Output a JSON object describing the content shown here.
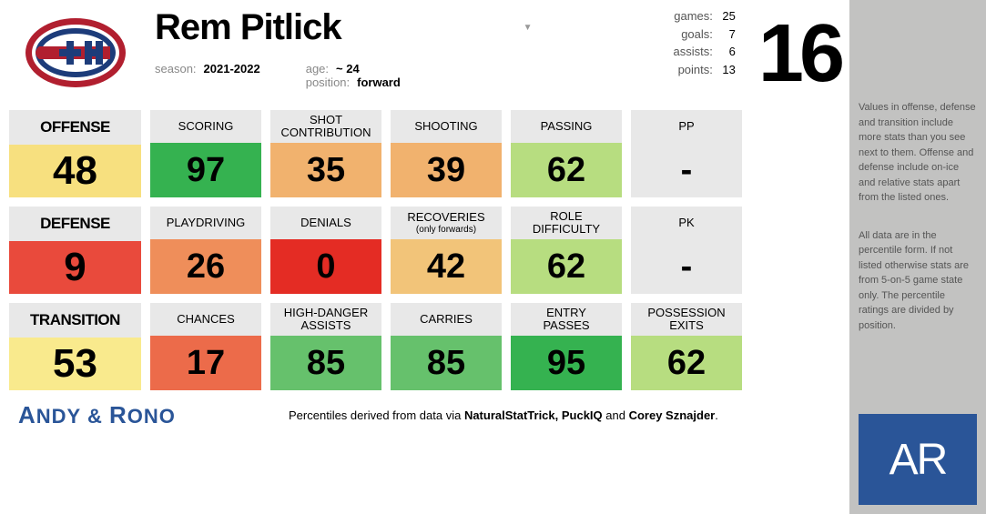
{
  "player": {
    "name": "Rem Pitlick",
    "season_label": "season:",
    "season": "2021-2022",
    "age_label": "age:",
    "age": "~ 24",
    "position_label": "position:",
    "position": "forward",
    "jersey": "16",
    "games_label": "games:",
    "games": "25",
    "goals_label": "goals:",
    "goals": "7",
    "assists_label": "assists:",
    "assists": "6",
    "points_label": "points:",
    "points": "13"
  },
  "team": {
    "logo_bg": "#ffffff",
    "primary": "#b11f2f",
    "secondary": "#1d3c7a",
    "white": "#ffffff"
  },
  "categories": [
    {
      "label": "OFFENSE",
      "value": "48",
      "color": "#f7e07f",
      "stats": [
        {
          "label": "SCORING",
          "sublabel": "",
          "value": "97",
          "color": "#35b250"
        },
        {
          "label": "SHOT",
          "sublabel": "CONTRIBUTION",
          "value": "35",
          "color": "#f1b26e"
        },
        {
          "label": "SHOOTING",
          "sublabel": "",
          "value": "39",
          "color": "#f1b26e"
        },
        {
          "label": "PASSING",
          "sublabel": "",
          "value": "62",
          "color": "#b7dd80"
        },
        {
          "label": "PP",
          "sublabel": "",
          "value": "-",
          "color": "#e8e8e8"
        }
      ]
    },
    {
      "label": "DEFENSE",
      "value": "9",
      "color": "#e94a3c",
      "stats": [
        {
          "label": "PLAYDRIVING",
          "sublabel": "",
          "value": "26",
          "color": "#ef8e5a"
        },
        {
          "label": "DENIALS",
          "sublabel": "",
          "value": "0",
          "color": "#e42c24"
        },
        {
          "label": "RECOVERIES",
          "sublabel": "(only forwards)",
          "value": "42",
          "color": "#f2c479"
        },
        {
          "label": "ROLE",
          "sublabel": "DIFFICULTY",
          "value": "62",
          "color": "#b7dd80"
        },
        {
          "label": "PK",
          "sublabel": "",
          "value": "-",
          "color": "#e8e8e8"
        }
      ]
    },
    {
      "label": "TRANSITION",
      "value": "53",
      "color": "#f9ea8d",
      "stats": [
        {
          "label": "CHANCES",
          "sublabel": "",
          "value": "17",
          "color": "#ec6b4a"
        },
        {
          "label": "HIGH-DANGER",
          "sublabel": "ASSISTS",
          "value": "85",
          "color": "#66c16c"
        },
        {
          "label": "CARRIES",
          "sublabel": "",
          "value": "85",
          "color": "#66c16c"
        },
        {
          "label": "ENTRY",
          "sublabel": "PASSES",
          "value": "95",
          "color": "#35b250"
        },
        {
          "label": "POSSESSION",
          "sublabel": "EXITS",
          "value": "62",
          "color": "#b7dd80"
        }
      ]
    }
  ],
  "footer": {
    "credit_a": "A",
    "credit_andy": "NDY",
    "credit_amp": " & ",
    "credit_r": "R",
    "credit_rono": "ONO",
    "attribution_pre": "Percentiles derived from data via ",
    "attribution_src1": "NaturalStatTrick, PuckIQ",
    "attribution_mid": " and ",
    "attribution_src2": "Corey Sznajder",
    "attribution_post": "."
  },
  "sidebar": {
    "note1": "Values in offense, defense and transition include more stats than you see next to them. Offense and defense include on-ice and relative stats apart from the listed ones.",
    "note2": "All data are in the percentile form. If not listed otherwise stats are from 5-on-5 game state only. The percentile ratings are divided by position.",
    "logo_text": "AR"
  }
}
